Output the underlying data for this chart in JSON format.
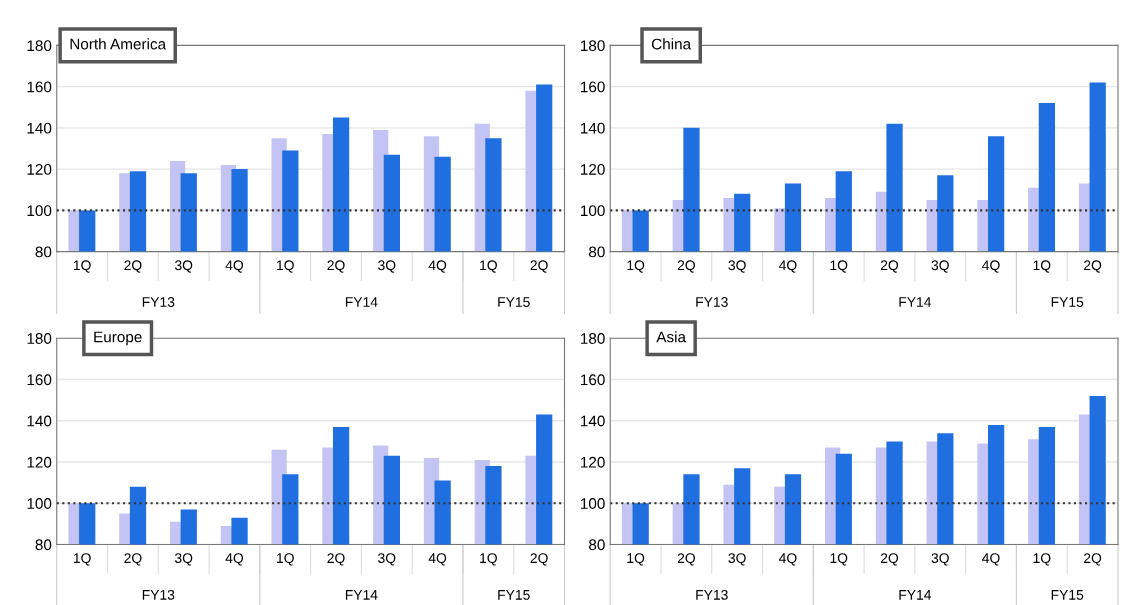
{
  "chart_data": [
    {
      "type": "bar",
      "title": "North America",
      "categories": [
        "1Q",
        "2Q",
        "3Q",
        "4Q",
        "1Q",
        "2Q",
        "3Q",
        "4Q",
        "1Q",
        "2Q"
      ],
      "annotations": [
        "FY13",
        "FY14",
        "FY15"
      ],
      "series": [
        {
          "color": "#c4c4f4",
          "values": [
            100,
            118,
            124,
            122,
            135,
            137,
            139,
            136,
            142,
            158
          ]
        },
        {
          "color": "#1f6fe0",
          "values": [
            100,
            119,
            118,
            120,
            129,
            145,
            127,
            126,
            135,
            161
          ]
        }
      ],
      "ylim": [
        80,
        180
      ],
      "yticks": [
        80,
        100,
        120,
        140,
        160,
        180
      ],
      "grid": "y",
      "ref_lines": [
        {
          "axis": "y",
          "value": 100,
          "color": "#333333",
          "line_style": "dotted"
        }
      ]
    },
    {
      "type": "bar",
      "title": "China",
      "categories": [
        "1Q",
        "2Q",
        "3Q",
        "4Q",
        "1Q",
        "2Q",
        "3Q",
        "4Q",
        "1Q",
        "2Q"
      ],
      "annotations": [
        "FY13",
        "FY14",
        "FY15"
      ],
      "series": [
        {
          "color": "#c4c4f4",
          "values": [
            100,
            105,
            106,
            101,
            106,
            109,
            105,
            105,
            111,
            113
          ]
        },
        {
          "color": "#1f6fe0",
          "values": [
            100,
            140,
            108,
            113,
            119,
            142,
            117,
            136,
            152,
            162
          ]
        }
      ],
      "ylim": [
        80,
        180
      ],
      "yticks": [
        80,
        100,
        120,
        140,
        160,
        180
      ],
      "grid": "y",
      "ref_lines": [
        {
          "axis": "y",
          "value": 100,
          "color": "#333333",
          "line_style": "dotted"
        }
      ]
    },
    {
      "type": "bar",
      "title": "Europe",
      "categories": [
        "1Q",
        "2Q",
        "3Q",
        "4Q",
        "1Q",
        "2Q",
        "3Q",
        "4Q",
        "1Q",
        "2Q"
      ],
      "annotations": [
        "FY13",
        "FY14",
        "FY15"
      ],
      "series": [
        {
          "color": "#c4c4f4",
          "values": [
            100,
            95,
            91,
            89,
            126,
            127,
            128,
            122,
            121,
            123
          ]
        },
        {
          "color": "#1f6fe0",
          "values": [
            100,
            108,
            97,
            93,
            114,
            137,
            123,
            111,
            118,
            143
          ]
        }
      ],
      "ylim": [
        80,
        180
      ],
      "yticks": [
        80,
        100,
        120,
        140,
        160,
        180
      ],
      "grid": "y",
      "ref_lines": [
        {
          "axis": "y",
          "value": 100,
          "color": "#333333",
          "line_style": "dotted"
        }
      ]
    },
    {
      "type": "bar",
      "title": "Asia",
      "categories": [
        "1Q",
        "2Q",
        "3Q",
        "4Q",
        "1Q",
        "2Q",
        "3Q",
        "4Q",
        "1Q",
        "2Q"
      ],
      "annotations": [
        "FY13",
        "FY14",
        "FY15"
      ],
      "series": [
        {
          "color": "#c4c4f4",
          "values": [
            100,
            100,
            109,
            108,
            127,
            127,
            130,
            129,
            131,
            143
          ]
        },
        {
          "color": "#1f6fe0",
          "values": [
            100,
            114,
            117,
            114,
            124,
            130,
            134,
            138,
            137,
            152
          ]
        }
      ],
      "ylim": [
        80,
        180
      ],
      "yticks": [
        80,
        100,
        120,
        140,
        160,
        180
      ],
      "grid": "y",
      "ref_lines": [
        {
          "axis": "y",
          "value": 100,
          "color": "#333333",
          "line_style": "dotted"
        }
      ]
    }
  ]
}
